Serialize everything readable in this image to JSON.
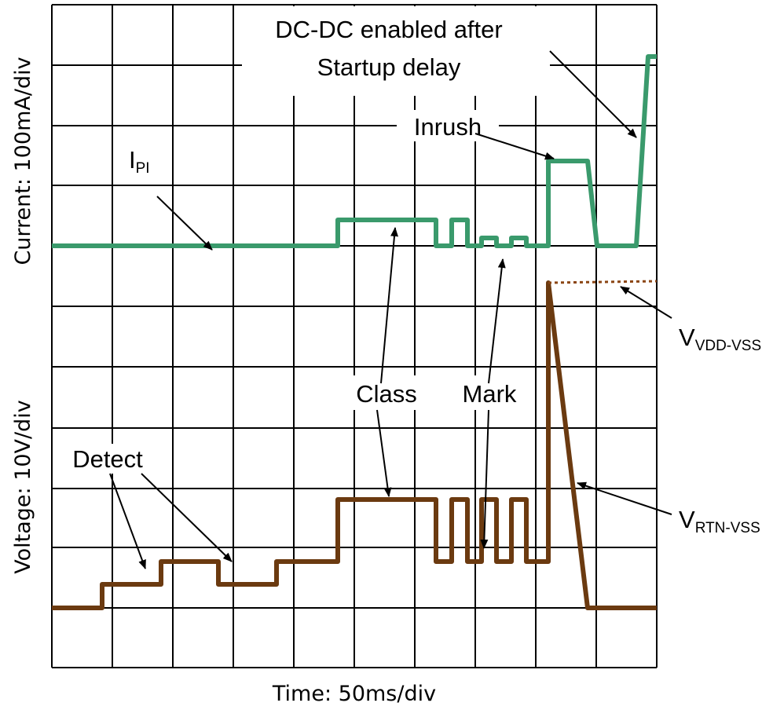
{
  "annotations": {
    "dcdc": [
      "DC-DC enabled after",
      "Startup delay"
    ],
    "inrush": "Inrush",
    "ipi": {
      "main": "I",
      "sub": "PI"
    },
    "class": "Class",
    "mark": "Mark",
    "detect": "Detect",
    "vdd": {
      "main": "V",
      "sub": "VDD-VSS"
    },
    "rtn": {
      "main": "V",
      "sub": "RTN-VSS"
    }
  },
  "axes": {
    "current": "Current: 100mA/div",
    "voltage": "Voltage: 10V/div",
    "time": "Time: 50ms/div"
  }
}
